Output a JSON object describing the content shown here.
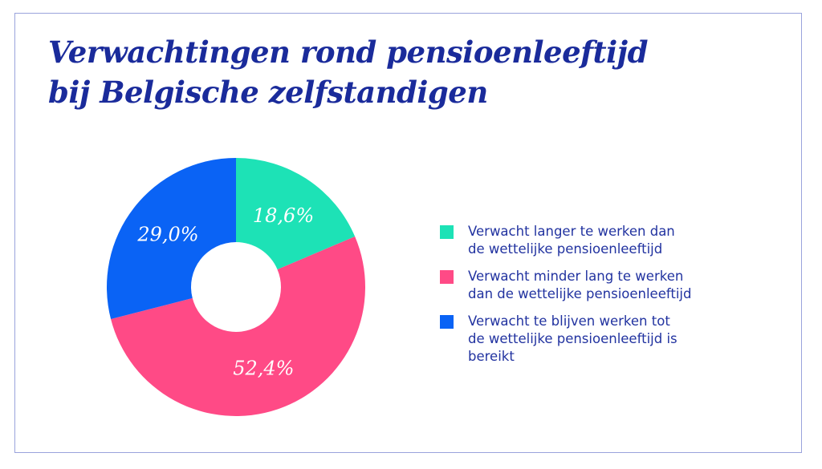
{
  "chart_data": {
    "type": "pie",
    "variant": "donut",
    "title_lines": [
      "Verwachtingen rond pensioenleeftijd",
      "bij Belgische zelfstandigen"
    ],
    "slices": [
      {
        "label_lines": [
          "Verwacht langer te werken dan",
          "de wettelijke pensioenleeftijd"
        ],
        "value": 18.6,
        "display": "18,6%",
        "color": "#1de2b6"
      },
      {
        "label_lines": [
          "Verwacht minder lang te werken",
          "dan de wettelijke pensioenleeftijd"
        ],
        "value": 52.4,
        "display": "52,4%",
        "color": "#ff4a86"
      },
      {
        "label_lines": [
          "Verwacht te blijven werken tot",
          "de wettelijke pensioenleeftijd is",
          "bereikt"
        ],
        "value": 29.0,
        "display": "29,0%",
        "color": "#0a63f5"
      }
    ],
    "legend_position": "right",
    "text_color": "#2233a0",
    "title_color": "#1a2b9b"
  }
}
